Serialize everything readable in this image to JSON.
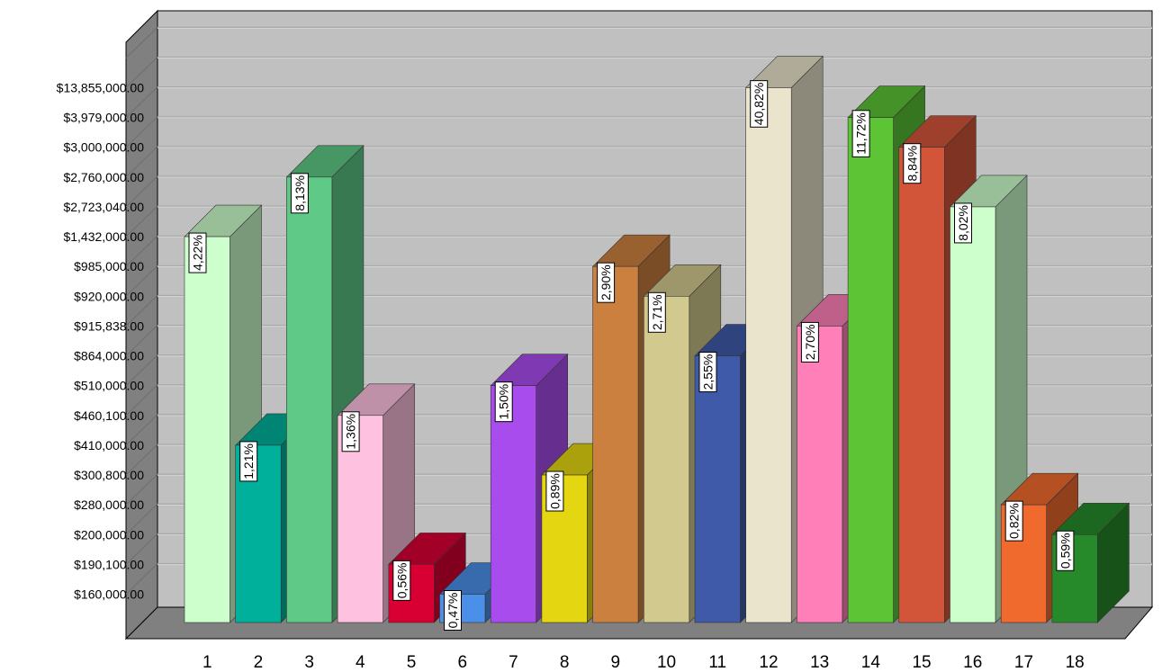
{
  "chart_data": {
    "type": "bar",
    "title": "",
    "xlabel": "",
    "ylabel": "",
    "categories": [
      "1",
      "2",
      "3",
      "4",
      "5",
      "6",
      "7",
      "8",
      "9",
      "10",
      "11",
      "12",
      "13",
      "14",
      "15",
      "16",
      "17",
      "18"
    ],
    "y_tick_labels": [
      "$13,855,000.00",
      "$3,979,000.00",
      "$3,000,000.00",
      "$2,760,000.00",
      "$2,723,040.00",
      "$1,432,000.00",
      "$985,000.00",
      "$920,000.00",
      "$915,838.00",
      "$864,000.00",
      "$510,000.00",
      "$460,100.00",
      "$410,000.00",
      "$300,800.00",
      "$280,000.00",
      "$200,000.00",
      "$190,100.00",
      "$160,000.00"
    ],
    "values": [
      1432000,
      410000,
      2760000,
      460100,
      190100,
      160000,
      510000,
      300800,
      985000,
      920000,
      864000,
      13855000,
      915838,
      3979000,
      3000000,
      2723040,
      280000,
      200000
    ],
    "percent_labels": [
      "4,22%",
      "1,21%",
      "8,13%",
      "1,36%",
      "0,56%",
      "0,47%",
      "1,50%",
      "0,89%",
      "2,90%",
      "2,71%",
      "2,55%",
      "40,82%",
      "2,70%",
      "11,72%",
      "8,84%",
      "8,02%",
      "0,82%",
      "0,59%"
    ],
    "colors": [
      "#ccffcc",
      "#00b09a",
      "#5fc987",
      "#ffc1e0",
      "#d80032",
      "#4a8fe8",
      "#a84cee",
      "#e4d610",
      "#cc8040",
      "#d2c98e",
      "#3e5aa8",
      "#ebe4cc",
      "#ff80b8",
      "#5cc435",
      "#d2553a",
      "#ccffcc",
      "#f06a2d",
      "#268a2a"
    ],
    "plot_background": "#c0c0c0",
    "grid": true,
    "legend": "none"
  }
}
